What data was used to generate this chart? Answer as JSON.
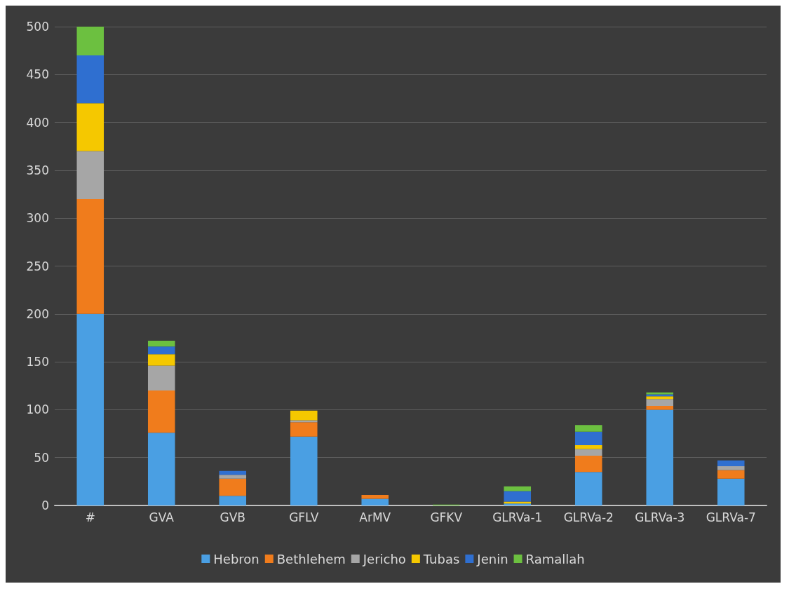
{
  "chart_data": {
    "type": "bar",
    "stacked": true,
    "categories": [
      "#",
      "GVA",
      "GVB",
      "GFLV",
      "ArMV",
      "GFKV",
      "GLRVa-1",
      "GLRVa-2",
      "GLRVa-3",
      "GLRVa-7"
    ],
    "series": [
      {
        "name": "Hebron",
        "color": "#4a9fe3",
        "values": [
          200,
          76,
          10,
          72,
          7,
          0,
          2,
          35,
          100,
          28
        ]
      },
      {
        "name": "Bethlehem",
        "color": "#f07c1c",
        "values": [
          120,
          44,
          18,
          15,
          4,
          0,
          0,
          17,
          4,
          9
        ]
      },
      {
        "name": "Jericho",
        "color": "#a6a6a6",
        "values": [
          50,
          26,
          4,
          2,
          0,
          0,
          0,
          7,
          7,
          4
        ]
      },
      {
        "name": "Tubas",
        "color": "#f5c800",
        "values": [
          50,
          12,
          0,
          10,
          0,
          0,
          2,
          4,
          3,
          0
        ]
      },
      {
        "name": "Jenin",
        "color": "#2f6fd0",
        "values": [
          50,
          8,
          4,
          0,
          0,
          0,
          11,
          14,
          2,
          6
        ]
      },
      {
        "name": "Ramallah",
        "color": "#6cc040",
        "values": [
          30,
          6,
          0,
          0,
          0,
          1,
          5,
          7,
          2,
          0
        ]
      }
    ],
    "ylim": [
      0,
      500
    ],
    "yticks": [
      0,
      50,
      100,
      150,
      200,
      250,
      300,
      350,
      400,
      450,
      500
    ],
    "grid": "y",
    "legend": "bottom"
  }
}
